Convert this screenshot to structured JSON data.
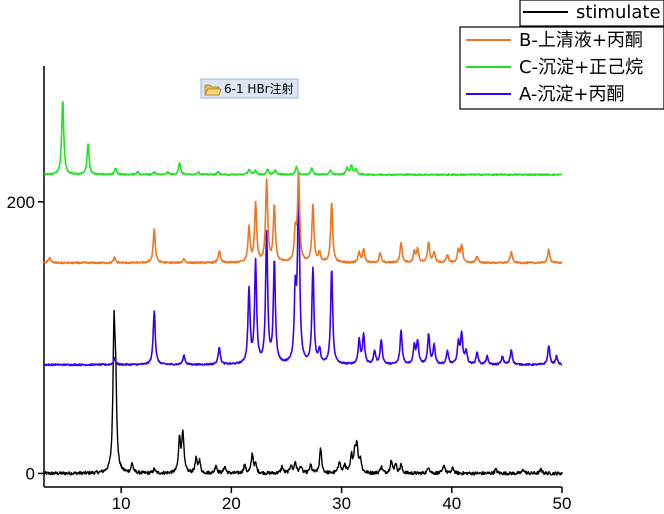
{
  "chart_data": {
    "type": "line",
    "title": "",
    "xlabel": "",
    "ylabel": "",
    "xlim": [
      3,
      50
    ],
    "ylim": [
      -10,
      300
    ],
    "x_ticks": [
      10,
      20,
      30,
      40,
      50
    ],
    "y_ticks": [
      0,
      200
    ],
    "grid": false,
    "legend_position": "top-right",
    "annotation": "6-1 HBr注射",
    "annotation_icon": "folder-icon",
    "series": [
      {
        "name": "stimulate",
        "color": "#000000",
        "baseline": 0,
        "noise": 1.2,
        "peaks": [
          [
            9.35,
            100
          ],
          [
            9.5,
            55
          ],
          [
            11.0,
            7
          ],
          [
            13.0,
            3
          ],
          [
            15.3,
            25
          ],
          [
            15.6,
            30
          ],
          [
            16.8,
            10
          ],
          [
            17.1,
            9
          ],
          [
            18.6,
            6
          ],
          [
            19.4,
            5
          ],
          [
            21.2,
            6
          ],
          [
            21.9,
            14
          ],
          [
            22.2,
            6
          ],
          [
            24.6,
            5
          ],
          [
            25.4,
            6
          ],
          [
            25.8,
            8
          ],
          [
            26.3,
            5
          ],
          [
            27.2,
            6
          ],
          [
            28.1,
            18
          ],
          [
            29.8,
            9
          ],
          [
            30.3,
            6
          ],
          [
            30.9,
            12
          ],
          [
            31.2,
            15
          ],
          [
            31.4,
            19
          ],
          [
            31.7,
            10
          ],
          [
            33.6,
            5
          ],
          [
            34.5,
            9
          ],
          [
            34.9,
            7
          ],
          [
            35.4,
            6
          ],
          [
            37.9,
            5
          ],
          [
            39.3,
            6
          ],
          [
            40.1,
            4
          ],
          [
            44.0,
            3
          ],
          [
            46.5,
            3
          ],
          [
            48.1,
            3
          ]
        ]
      },
      {
        "name": "A-沉淀+丙酮",
        "color": "#3a00f0",
        "baseline": 80,
        "noise": 0.6,
        "peaks": [
          [
            9.4,
            5
          ],
          [
            13.0,
            40
          ],
          [
            15.7,
            7
          ],
          [
            18.9,
            13
          ],
          [
            21.6,
            55
          ],
          [
            22.2,
            75
          ],
          [
            23.2,
            95
          ],
          [
            23.9,
            75
          ],
          [
            25.8,
            50
          ],
          [
            26.1,
            130
          ],
          [
            27.4,
            70
          ],
          [
            28.0,
            10
          ],
          [
            29.1,
            70
          ],
          [
            31.6,
            18
          ],
          [
            32.0,
            22
          ],
          [
            33.0,
            10
          ],
          [
            33.6,
            18
          ],
          [
            35.4,
            25
          ],
          [
            36.6,
            14
          ],
          [
            36.9,
            17
          ],
          [
            37.9,
            22
          ],
          [
            38.4,
            14
          ],
          [
            39.6,
            10
          ],
          [
            40.6,
            16
          ],
          [
            40.9,
            22
          ],
          [
            41.3,
            10
          ],
          [
            42.3,
            9
          ],
          [
            43.2,
            6
          ],
          [
            44.6,
            6
          ],
          [
            45.4,
            11
          ],
          [
            48.8,
            14
          ],
          [
            49.5,
            6
          ]
        ]
      },
      {
        "name": "B-上清液+丙酮",
        "color": "#ee7623",
        "baseline": 155,
        "noise": 0.6,
        "peaks": [
          [
            3.5,
            4
          ],
          [
            9.4,
            4
          ],
          [
            13.0,
            25
          ],
          [
            15.7,
            3
          ],
          [
            18.9,
            9
          ],
          [
            21.6,
            26
          ],
          [
            22.2,
            44
          ],
          [
            23.2,
            60
          ],
          [
            23.9,
            42
          ],
          [
            25.8,
            22
          ],
          [
            26.1,
            65
          ],
          [
            27.4,
            42
          ],
          [
            28.0,
            7
          ],
          [
            29.1,
            44
          ],
          [
            31.6,
            8
          ],
          [
            32.0,
            10
          ],
          [
            33.5,
            7
          ],
          [
            35.4,
            15
          ],
          [
            36.6,
            8
          ],
          [
            36.9,
            10
          ],
          [
            37.9,
            15
          ],
          [
            38.4,
            8
          ],
          [
            39.6,
            6
          ],
          [
            40.6,
            9
          ],
          [
            40.9,
            13
          ],
          [
            42.3,
            5
          ],
          [
            45.4,
            8
          ],
          [
            48.8,
            10
          ]
        ]
      },
      {
        "name": "C-沉淀+正己烷",
        "color": "#21e221",
        "baseline": 220,
        "noise": 0.5,
        "peaks": [
          [
            4.7,
            55
          ],
          [
            7.0,
            22
          ],
          [
            9.5,
            5
          ],
          [
            11.5,
            2
          ],
          [
            13.0,
            2
          ],
          [
            14.2,
            2
          ],
          [
            15.3,
            9
          ],
          [
            17.0,
            2
          ],
          [
            18.8,
            2
          ],
          [
            21.6,
            4
          ],
          [
            22.2,
            3
          ],
          [
            23.3,
            4
          ],
          [
            24.0,
            3
          ],
          [
            25.9,
            6
          ],
          [
            27.3,
            5
          ],
          [
            29.0,
            3
          ],
          [
            30.5,
            5
          ],
          [
            30.9,
            7
          ],
          [
            31.3,
            4
          ]
        ]
      }
    ]
  }
}
